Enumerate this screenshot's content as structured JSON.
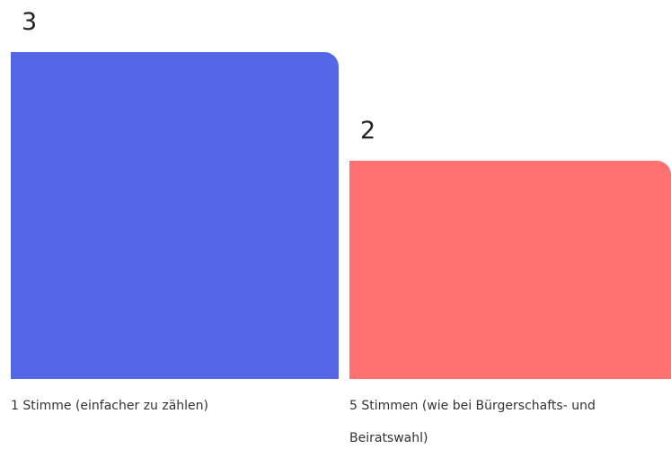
{
  "chart_data": {
    "type": "bar",
    "categories": [
      "1 Stimme (einfacher zu zählen)",
      "5 Stimmen (wie bei Bürgerschafts- und Beiratswahl)"
    ],
    "values": [
      3,
      2
    ],
    "colors": [
      "#5468e7",
      "#ff7070"
    ]
  }
}
